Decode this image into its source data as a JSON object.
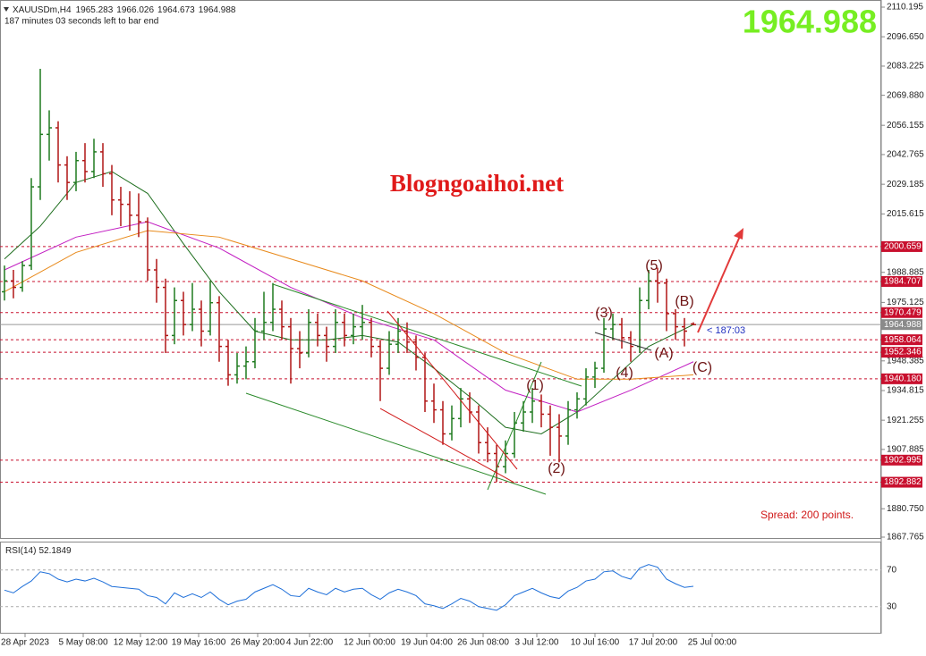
{
  "header": {
    "symbol": "XAUUSDm,H4",
    "timer": "187 minutes 03 seconds left to bar end"
  },
  "watermark": "Blogngoaihoi.net",
  "spread": "Spread: 200 points.",
  "countdown": "< 187:03",
  "wave_labels": [
    "(1)",
    "(2)",
    "(3)",
    "(4)",
    "(5)",
    "(A)",
    "(B)",
    "(C)"
  ],
  "chart_data": [
    {
      "type": "ohlc",
      "up_color": "#1f7a1f",
      "down_color": "#b01515",
      "candles": [
        [
          1980,
          1992,
          1976,
          1985
        ],
        [
          1985,
          1990,
          1977,
          1982
        ],
        [
          1982,
          1994,
          1980,
          1992
        ],
        [
          1992,
          2032,
          1990,
          2028
        ],
        [
          2028,
          2082,
          2022,
          2052
        ],
        [
          2052,
          2063,
          2040,
          2055
        ],
        [
          2055,
          2058,
          2030,
          2038
        ],
        [
          2038,
          2042,
          2022,
          2030
        ],
        [
          2030,
          2044,
          2026,
          2040
        ],
        [
          2040,
          2048,
          2030,
          2035
        ],
        [
          2035,
          2050,
          2032,
          2044
        ],
        [
          2044,
          2048,
          2028,
          2034
        ],
        [
          2034,
          2038,
          2015,
          2022
        ],
        [
          2022,
          2028,
          2010,
          2020
        ],
        [
          2020,
          2026,
          2008,
          2015
        ],
        [
          2015,
          2025,
          2005,
          2012
        ],
        [
          2012,
          2014,
          1985,
          1990
        ],
        [
          1990,
          1995,
          1975,
          1982
        ],
        [
          1982,
          1986,
          1952,
          1960
        ],
        [
          1960,
          1982,
          1956,
          1976
        ],
        [
          1976,
          1980,
          1960,
          1965
        ],
        [
          1965,
          1984,
          1962,
          1972
        ],
        [
          1972,
          1976,
          1955,
          1962
        ],
        [
          1962,
          1985,
          1960,
          1975
        ],
        [
          1975,
          1978,
          1948,
          1955
        ],
        [
          1955,
          1958,
          1937,
          1942
        ],
        [
          1942,
          1952,
          1938,
          1946
        ],
        [
          1946,
          1955,
          1940,
          1948
        ],
        [
          1948,
          1968,
          1945,
          1962
        ],
        [
          1962,
          1980,
          1958,
          1966
        ],
        [
          1966,
          1984,
          1962,
          1972
        ],
        [
          1972,
          1976,
          1958,
          1964
        ],
        [
          1964,
          1968,
          1938,
          1954
        ],
        [
          1954,
          1962,
          1945,
          1952
        ],
        [
          1952,
          1972,
          1950,
          1966
        ],
        [
          1966,
          1970,
          1955,
          1960
        ],
        [
          1960,
          1964,
          1948,
          1955
        ],
        [
          1955,
          1972,
          1952,
          1966
        ],
        [
          1966,
          1970,
          1955,
          1960
        ],
        [
          1960,
          1970,
          1956,
          1964
        ],
        [
          1964,
          1974,
          1958,
          1966
        ],
        [
          1966,
          1968,
          1950,
          1955
        ],
        [
          1955,
          1958,
          1930,
          1945
        ],
        [
          1945,
          1962,
          1942,
          1956
        ],
        [
          1956,
          1968,
          1952,
          1962
        ],
        [
          1962,
          1966,
          1952,
          1957
        ],
        [
          1957,
          1960,
          1944,
          1950
        ],
        [
          1950,
          1952,
          1925,
          1930
        ],
        [
          1930,
          1938,
          1920,
          1926
        ],
        [
          1926,
          1930,
          1910,
          1915
        ],
        [
          1915,
          1928,
          1912,
          1922
        ],
        [
          1922,
          1936,
          1918,
          1931
        ],
        [
          1931,
          1934,
          1920,
          1925
        ],
        [
          1925,
          1928,
          1906,
          1911
        ],
        [
          1911,
          1918,
          1902,
          1906
        ],
        [
          1906,
          1910,
          1893,
          1900
        ],
        [
          1900,
          1912,
          1897,
          1906
        ],
        [
          1906,
          1925,
          1904,
          1920
        ],
        [
          1920,
          1930,
          1916,
          1925
        ],
        [
          1925,
          1936,
          1920,
          1930
        ],
        [
          1930,
          1933,
          1918,
          1924
        ],
        [
          1924,
          1928,
          1905,
          1918
        ],
        [
          1918,
          1924,
          1902,
          1914
        ],
        [
          1914,
          1930,
          1910,
          1926
        ],
        [
          1926,
          1934,
          1922,
          1931
        ],
        [
          1931,
          1945,
          1928,
          1941
        ],
        [
          1941,
          1948,
          1936,
          1945
        ],
        [
          1945,
          1968,
          1943,
          1963
        ],
        [
          1963,
          1970,
          1958,
          1965
        ],
        [
          1965,
          1968,
          1954,
          1959
        ],
        [
          1959,
          1962,
          1948,
          1955
        ],
        [
          1955,
          1982,
          1952,
          1976
        ],
        [
          1976,
          1990,
          1972,
          1985
        ],
        [
          1985,
          1991,
          1975,
          1984
        ],
        [
          1984,
          1986,
          1962,
          1970
        ],
        [
          1970,
          1972,
          1958,
          1964
        ],
        [
          1964,
          1968,
          1955,
          1962
        ],
        [
          1965.283,
          1966.026,
          1964.673,
          1964.988
        ]
      ],
      "moving_averages": [
        {
          "color": "#1e6e1e",
          "x": [
            0,
            4,
            8,
            12,
            16,
            20,
            24,
            28,
            32,
            36,
            40,
            44,
            48,
            52,
            56,
            60,
            64,
            68,
            72,
            77
          ],
          "values": [
            1995,
            2010,
            2030,
            2035,
            2025,
            2002,
            1980,
            1962,
            1958,
            1958,
            1960,
            1957,
            1945,
            1932,
            1918,
            1915,
            1925,
            1940,
            1955,
            1965
          ]
        },
        {
          "color": "#c21ec2",
          "x": [
            0,
            8,
            16,
            24,
            32,
            40,
            48,
            56,
            64,
            70,
            77
          ],
          "values": [
            1990,
            2005,
            2012,
            2000,
            1982,
            1968,
            1958,
            1935,
            1925,
            1935,
            1948
          ]
        },
        {
          "color": "#e8891a",
          "x": [
            0,
            8,
            16,
            24,
            32,
            40,
            48,
            56,
            64,
            70,
            77
          ],
          "values": [
            1980,
            1998,
            2008,
            2005,
            1995,
            1985,
            1970,
            1952,
            1940,
            1940,
            1942
          ]
        }
      ],
      "ylim": [
        1867.765,
        2110.195
      ],
      "yticks": [
        2110.195,
        {
          "value": 2096.65,
          "label": "2096.650"
        },
        2083.225,
        {
          "value": 2069.88,
          "label": "2069.880"
        },
        2056.155,
        2042.765,
        2029.185,
        2015.615,
        1988.885,
        1975.125,
        1948.385,
        1934.815,
        1921.255,
        1907.885,
        {
          "value": 1880.75,
          "label": "1880.750"
        },
        1867.765
      ],
      "levels": [
        2000.659,
        1984.707,
        1970.479,
        1958.064,
        1952.346,
        {
          "value": 1940.18,
          "label": "1940.180"
        },
        1902.995,
        1892.882
      ],
      "level_color": "#c8102e",
      "xlim": [
        -0.5,
        98
      ],
      "xticks": [
        {
          "value": 2.3,
          "label": "28 Apr 2023"
        },
        {
          "value": 8.8,
          "label": "5 May 08:00"
        },
        {
          "value": 15.2,
          "label": "12 May 12:00"
        },
        {
          "value": 21.7,
          "label": "19 May 16:00"
        },
        {
          "value": 28.3,
          "label": "26 May 20:00"
        },
        {
          "value": 34.1,
          "label": "4 Jun 22:00"
        },
        {
          "value": 40.8,
          "label": "12 Jun 00:00"
        },
        {
          "value": 47.2,
          "label": "19 Jun 04:00"
        },
        {
          "value": 53.5,
          "label": "26 Jun 08:00"
        },
        {
          "value": 59.5,
          "label": "3 Jul 12:00"
        },
        {
          "value": 66,
          "label": "10 Jul 16:00"
        },
        {
          "value": 72.5,
          "label": "17 Jul 20:00"
        },
        {
          "value": 79.1,
          "label": "25 Jul 00:00"
        }
      ]
    },
    {
      "type": "line",
      "title": "RSI(14)",
      "color": "#1e6fd9",
      "values": [
        48,
        45,
        52,
        58,
        68,
        66,
        60,
        57,
        60,
        58,
        61,
        57,
        52,
        51,
        50,
        49,
        42,
        40,
        33,
        45,
        40,
        44,
        40,
        46,
        38,
        32,
        36,
        38,
        46,
        50,
        54,
        49,
        42,
        41,
        50,
        46,
        43,
        50,
        46,
        49,
        50,
        43,
        38,
        45,
        49,
        46,
        42,
        33,
        31,
        28,
        33,
        39,
        36,
        30,
        28,
        26,
        32,
        42,
        46,
        50,
        45,
        41,
        39,
        47,
        51,
        58,
        60,
        68,
        69,
        63,
        60,
        72,
        76,
        73,
        60,
        55,
        51,
        52.1849
      ],
      "ylim": [
        0,
        100
      ],
      "yticks": [
        30,
        70
      ]
    }
  ]
}
